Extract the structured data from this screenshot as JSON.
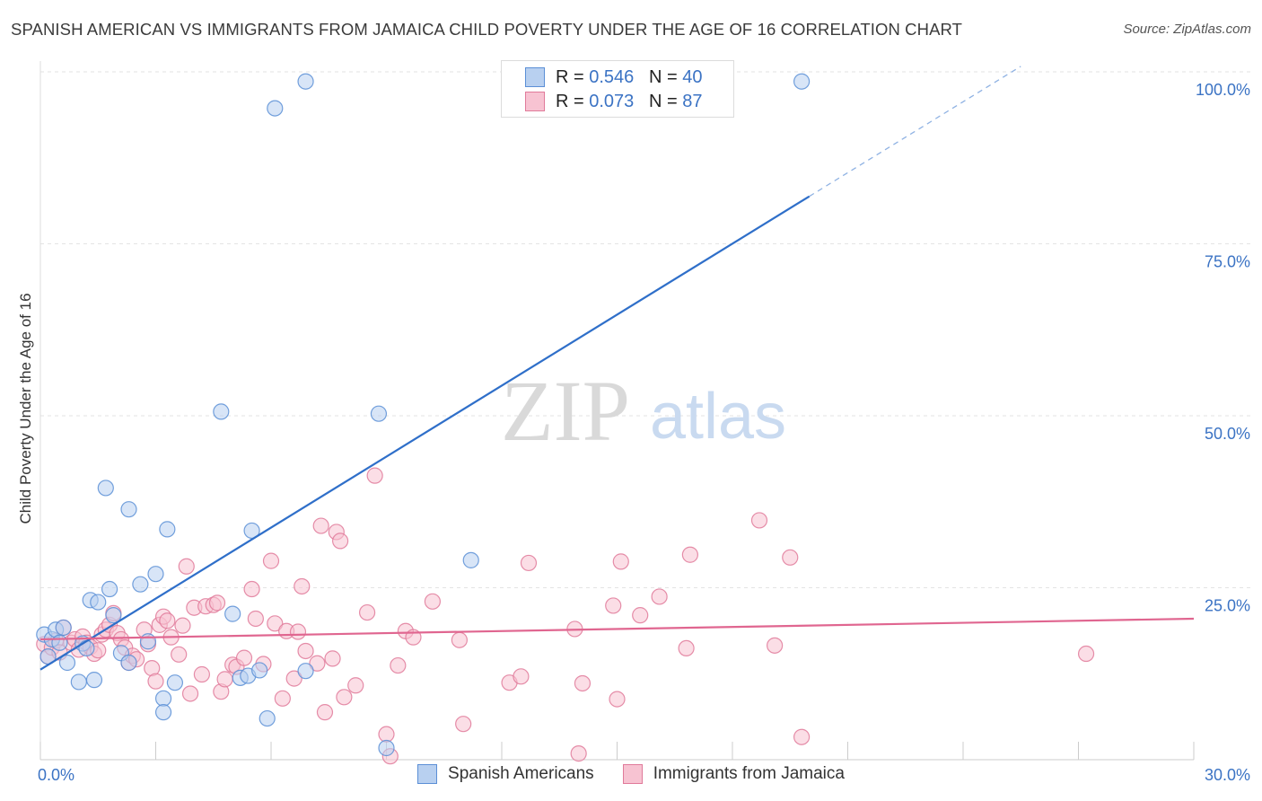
{
  "title": "SPANISH AMERICAN VS IMMIGRANTS FROM JAMAICA CHILD POVERTY UNDER THE AGE OF 16 CORRELATION CHART",
  "source": "Source: ZipAtlas.com",
  "watermark": {
    "zip": "ZIP",
    "atlas": "atlas"
  },
  "legend": {
    "r_label": "R =",
    "n_label": "N =",
    "rows": [
      {
        "r": "0.546",
        "n": "40",
        "color": "#5b8fd6",
        "fill": "#b8d0f0"
      },
      {
        "r": "0.073",
        "n": "87",
        "color": "#e07a9a",
        "fill": "#f7c3d2"
      }
    ]
  },
  "bottom_legend": [
    "Spanish Americans",
    "Immigrants from Jamaica"
  ],
  "chart_data": {
    "type": "scatter",
    "ylabel": "Child Poverty Under the Age of 16",
    "xlim": [
      0,
      30
    ],
    "ylim": [
      0,
      100
    ],
    "x_tick_labels": [
      "0.0%",
      "30.0%"
    ],
    "y_tick_labels": [
      "25.0%",
      "50.0%",
      "75.0%",
      "100.0%"
    ],
    "y_ticks": [
      25,
      50,
      75,
      100
    ],
    "grid": true,
    "legend_position": "top-center",
    "series": [
      {
        "name": "Spanish Americans",
        "color": "#5b8fd6",
        "fill": "#b8d0f0",
        "trend": {
          "x0": 0,
          "y0": 13.1,
          "x1": 20,
          "y1": 81.9,
          "dash_x1": 25.5,
          "dash_y1": 100.8
        },
        "points": [
          [
            0.1,
            18.2
          ],
          [
            0.3,
            17.5
          ],
          [
            0.4,
            18.9
          ],
          [
            0.6,
            19.2
          ],
          [
            0.7,
            14.1
          ],
          [
            1.0,
            11.3
          ],
          [
            1.1,
            16.9
          ],
          [
            1.2,
            16.2
          ],
          [
            1.3,
            23.2
          ],
          [
            1.4,
            11.6
          ],
          [
            1.5,
            22.9
          ],
          [
            1.7,
            39.5
          ],
          [
            1.8,
            24.8
          ],
          [
            1.9,
            21.0
          ],
          [
            2.1,
            15.5
          ],
          [
            2.3,
            14.1
          ],
          [
            2.3,
            36.4
          ],
          [
            2.6,
            25.5
          ],
          [
            2.8,
            17.2
          ],
          [
            3.0,
            27.0
          ],
          [
            3.2,
            8.9
          ],
          [
            3.2,
            6.9
          ],
          [
            3.3,
            33.5
          ],
          [
            3.5,
            11.2
          ],
          [
            4.7,
            50.6
          ],
          [
            5.0,
            21.2
          ],
          [
            5.2,
            11.9
          ],
          [
            5.4,
            12.2
          ],
          [
            5.5,
            33.3
          ],
          [
            5.7,
            13.0
          ],
          [
            5.9,
            6.0
          ],
          [
            6.1,
            94.7
          ],
          [
            6.9,
            98.6
          ],
          [
            6.9,
            12.9
          ],
          [
            8.8,
            50.3
          ],
          [
            9.0,
            1.7
          ],
          [
            11.2,
            29.0
          ],
          [
            19.8,
            98.6
          ],
          [
            0.2,
            15.0
          ],
          [
            0.5,
            17.0
          ]
        ]
      },
      {
        "name": "Immigrants from Jamaica",
        "color": "#e07a9a",
        "fill": "#f7c3d2",
        "trend": {
          "x0": 0,
          "y0": 17.5,
          "x1": 30,
          "y1": 20.5
        },
        "points": [
          [
            0.1,
            16.8
          ],
          [
            0.2,
            15.0
          ],
          [
            0.3,
            16.3
          ],
          [
            0.4,
            17.3
          ],
          [
            0.5,
            15.6
          ],
          [
            0.6,
            19.2
          ],
          [
            0.8,
            17.0
          ],
          [
            0.9,
            17.5
          ],
          [
            1.0,
            16.0
          ],
          [
            1.1,
            17.9
          ],
          [
            1.2,
            17.0
          ],
          [
            1.3,
            16.4
          ],
          [
            1.4,
            15.4
          ],
          [
            1.5,
            15.9
          ],
          [
            1.6,
            18.2
          ],
          [
            1.7,
            18.9
          ],
          [
            1.8,
            19.6
          ],
          [
            1.9,
            21.3
          ],
          [
            2.0,
            18.4
          ],
          [
            2.1,
            17.5
          ],
          [
            2.2,
            16.3
          ],
          [
            2.3,
            14.1
          ],
          [
            2.4,
            15.1
          ],
          [
            2.5,
            14.6
          ],
          [
            2.7,
            18.9
          ],
          [
            2.8,
            16.8
          ],
          [
            2.9,
            13.3
          ],
          [
            3.0,
            11.4
          ],
          [
            3.1,
            19.6
          ],
          [
            3.2,
            20.8
          ],
          [
            3.3,
            20.2
          ],
          [
            3.4,
            17.8
          ],
          [
            3.6,
            15.3
          ],
          [
            3.7,
            19.5
          ],
          [
            3.8,
            28.1
          ],
          [
            3.9,
            9.6
          ],
          [
            4.0,
            22.1
          ],
          [
            4.2,
            12.4
          ],
          [
            4.3,
            22.3
          ],
          [
            4.5,
            22.5
          ],
          [
            4.6,
            22.8
          ],
          [
            4.7,
            9.9
          ],
          [
            4.8,
            11.7
          ],
          [
            5.0,
            13.8
          ],
          [
            5.1,
            13.5
          ],
          [
            5.3,
            14.8
          ],
          [
            5.5,
            24.8
          ],
          [
            5.6,
            20.5
          ],
          [
            5.8,
            13.9
          ],
          [
            6.0,
            28.9
          ],
          [
            6.1,
            19.8
          ],
          [
            6.3,
            8.9
          ],
          [
            6.4,
            18.7
          ],
          [
            6.6,
            11.8
          ],
          [
            6.7,
            18.6
          ],
          [
            6.8,
            25.2
          ],
          [
            6.9,
            15.8
          ],
          [
            7.2,
            14.0
          ],
          [
            7.3,
            34.0
          ],
          [
            7.4,
            6.9
          ],
          [
            7.6,
            14.7
          ],
          [
            7.7,
            33.1
          ],
          [
            7.8,
            31.8
          ],
          [
            7.9,
            9.1
          ],
          [
            8.2,
            10.8
          ],
          [
            8.5,
            21.4
          ],
          [
            8.7,
            41.3
          ],
          [
            9.0,
            3.7
          ],
          [
            9.1,
            0.5
          ],
          [
            9.3,
            13.7
          ],
          [
            9.5,
            18.7
          ],
          [
            9.7,
            17.8
          ],
          [
            10.2,
            23.0
          ],
          [
            10.9,
            17.4
          ],
          [
            11.0,
            5.2
          ],
          [
            12.2,
            11.2
          ],
          [
            12.5,
            12.1
          ],
          [
            12.7,
            28.6
          ],
          [
            13.9,
            19.0
          ],
          [
            14.0,
            0.9
          ],
          [
            14.1,
            11.1
          ],
          [
            14.9,
            22.4
          ],
          [
            15.0,
            8.8
          ],
          [
            15.1,
            28.8
          ],
          [
            15.6,
            21.0
          ],
          [
            16.1,
            23.7
          ],
          [
            16.8,
            16.2
          ]
        ],
        "points_extra": [
          [
            16.9,
            29.8
          ],
          [
            18.7,
            34.8
          ],
          [
            19.1,
            16.6
          ],
          [
            19.5,
            29.4
          ],
          [
            19.8,
            3.3
          ],
          [
            27.2,
            15.4
          ]
        ]
      }
    ]
  }
}
